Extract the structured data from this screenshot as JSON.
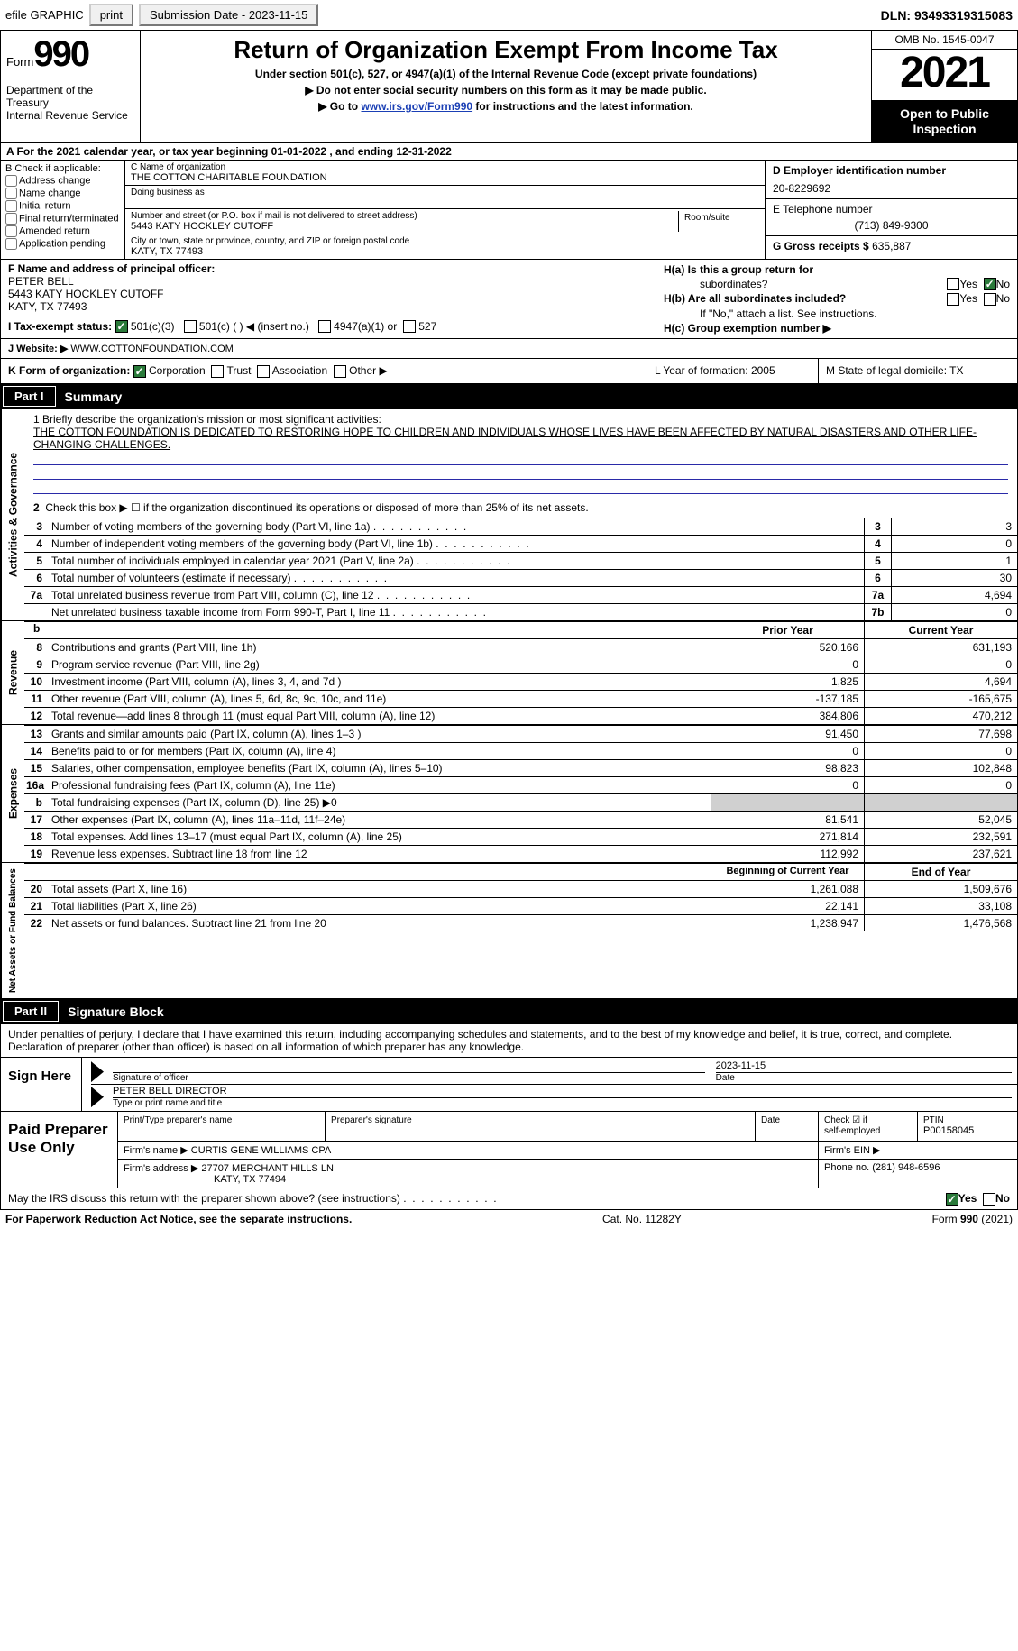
{
  "top": {
    "efile": "efile GRAPHIC",
    "print": "print",
    "sub_label": "Submission Date - 2023-11-15",
    "dln": "DLN: 93493319315083"
  },
  "header": {
    "form_word": "Form",
    "form_num": "990",
    "dept": "Department of the Treasury",
    "irs": "Internal Revenue Service",
    "title": "Return of Organization Exempt From Income Tax",
    "sub1": "Under section 501(c), 527, or 4947(a)(1) of the Internal Revenue Code (except private foundations)",
    "sub2": "▶ Do not enter social security numbers on this form as it may be made public.",
    "sub3_pre": "▶ Go to ",
    "sub3_link": "www.irs.gov/Form990",
    "sub3_post": " for instructions and the latest information.",
    "omb": "OMB No. 1545-0047",
    "year": "2021",
    "open": "Open to Public Inspection"
  },
  "rowA": "A For the 2021 calendar year, or tax year beginning 01-01-2022    , and ending 12-31-2022",
  "colB": {
    "hdr": "B Check if applicable:",
    "c1": "Address change",
    "c2": "Name change",
    "c3": "Initial return",
    "c4": "Final return/terminated",
    "c5": "Amended return",
    "c6": "Application pending"
  },
  "colC": {
    "name_lbl": "C Name of organization",
    "name": "THE COTTON CHARITABLE FOUNDATION",
    "dba_lbl": "Doing business as",
    "addr_lbl": "Number and street (or P.O. box if mail is not delivered to street address)",
    "room_lbl": "Room/suite",
    "addr": "5443 KATY HOCKLEY CUTOFF",
    "city_lbl": "City or town, state or province, country, and ZIP or foreign postal code",
    "city": "KATY, TX  77493"
  },
  "colD": {
    "ein_lbl": "D Employer identification number",
    "ein": "20-8229692",
    "tel_lbl": "E Telephone number",
    "tel": "(713) 849-9300",
    "gross_lbl": "G Gross receipts $",
    "gross": "635,887"
  },
  "f": {
    "lbl": "F  Name and address of principal officer:",
    "name": "PETER BELL",
    "addr1": "5443 KATY HOCKLEY CUTOFF",
    "addr2": "KATY, TX  77493"
  },
  "h": {
    "a_lbl": "H(a)  Is this a group return for",
    "a_lbl2": "subordinates?",
    "b_lbl": "H(b)  Are all subordinates included?",
    "b_note": "If \"No,\" attach a list. See instructions.",
    "c_lbl": "H(c)  Group exemption number ▶"
  },
  "i": {
    "lbl": "I   Tax-exempt status:",
    "o1": "501(c)(3)",
    "o2": "501(c) (  ) ◀ (insert no.)",
    "o3": "4947(a)(1) or",
    "o4": "527"
  },
  "j": {
    "lbl": "J   Website: ▶",
    "val": "WWW.COTTONFOUNDATION.COM"
  },
  "k_lbl": "K Form of organization:",
  "k_o": [
    "Corporation",
    "Trust",
    "Association",
    "Other ▶"
  ],
  "l": "L Year of formation: 2005",
  "m": "M State of legal domicile: TX",
  "part1": {
    "tag": "Part I",
    "ttl": "Summary"
  },
  "mission": {
    "lbl": "1   Briefly describe the organization's mission or most significant activities:",
    "txt": "THE COTTON FOUNDATION IS DEDICATED TO RESTORING HOPE TO CHILDREN AND INDIVIDUALS WHOSE LIVES HAVE BEEN AFFECTED BY NATURAL DISASTERS AND OTHER LIFE-CHANGING CHALLENGES."
  },
  "line2": "Check this box ▶ ☐  if the organization discontinued its operations or disposed of more than 25% of its net assets.",
  "gov_lines": [
    {
      "n": "3",
      "d": "Number of voting members of the governing body (Part VI, line 1a)",
      "box": "3",
      "v": "3"
    },
    {
      "n": "4",
      "d": "Number of independent voting members of the governing body (Part VI, line 1b)",
      "box": "4",
      "v": "0"
    },
    {
      "n": "5",
      "d": "Total number of individuals employed in calendar year 2021 (Part V, line 2a)",
      "box": "5",
      "v": "1"
    },
    {
      "n": "6",
      "d": "Total number of volunteers (estimate if necessary)",
      "box": "6",
      "v": "30"
    },
    {
      "n": "7a",
      "d": "Total unrelated business revenue from Part VIII, column (C), line 12",
      "box": "7a",
      "v": "4,694"
    },
    {
      "n": " ",
      "d": "Net unrelated business taxable income from Form 990-T, Part I, line 11",
      "box": "7b",
      "v": "0"
    }
  ],
  "hdr_prior": "Prior Year",
  "hdr_curr": "Current Year",
  "rev_lines": [
    {
      "n": "8",
      "d": "Contributions and grants (Part VIII, line 1h)",
      "p": "520,166",
      "c": "631,193"
    },
    {
      "n": "9",
      "d": "Program service revenue (Part VIII, line 2g)",
      "p": "0",
      "c": "0"
    },
    {
      "n": "10",
      "d": "Investment income (Part VIII, column (A), lines 3, 4, and 7d )",
      "p": "1,825",
      "c": "4,694"
    },
    {
      "n": "11",
      "d": "Other revenue (Part VIII, column (A), lines 5, 6d, 8c, 9c, 10c, and 11e)",
      "p": "-137,185",
      "c": "-165,675"
    },
    {
      "n": "12",
      "d": "Total revenue—add lines 8 through 11 (must equal Part VIII, column (A), line 12)",
      "p": "384,806",
      "c": "470,212"
    }
  ],
  "exp_lines": [
    {
      "n": "13",
      "d": "Grants and similar amounts paid (Part IX, column (A), lines 1–3 )",
      "p": "91,450",
      "c": "77,698"
    },
    {
      "n": "14",
      "d": "Benefits paid to or for members (Part IX, column (A), line 4)",
      "p": "0",
      "c": "0"
    },
    {
      "n": "15",
      "d": "Salaries, other compensation, employee benefits (Part IX, column (A), lines 5–10)",
      "p": "98,823",
      "c": "102,848"
    },
    {
      "n": "16a",
      "d": "Professional fundraising fees (Part IX, column (A), line 11e)",
      "p": "0",
      "c": "0"
    },
    {
      "n": "b",
      "d": "Total fundraising expenses (Part IX, column (D), line 25) ▶0",
      "p": "",
      "c": "",
      "shaded": true
    },
    {
      "n": "17",
      "d": "Other expenses (Part IX, column (A), lines 11a–11d, 11f–24e)",
      "p": "81,541",
      "c": "52,045"
    },
    {
      "n": "18",
      "d": "Total expenses. Add lines 13–17 (must equal Part IX, column (A), line 25)",
      "p": "271,814",
      "c": "232,591"
    },
    {
      "n": "19",
      "d": "Revenue less expenses. Subtract line 18 from line 12",
      "p": "112,992",
      "c": "237,621"
    }
  ],
  "hdr_beg": "Beginning of Current Year",
  "hdr_end": "End of Year",
  "na_lines": [
    {
      "n": "20",
      "d": "Total assets (Part X, line 16)",
      "p": "1,261,088",
      "c": "1,509,676"
    },
    {
      "n": "21",
      "d": "Total liabilities (Part X, line 26)",
      "p": "22,141",
      "c": "33,108"
    },
    {
      "n": "22",
      "d": "Net assets or fund balances. Subtract line 21 from line 20",
      "p": "1,238,947",
      "c": "1,476,568"
    }
  ],
  "part2": {
    "tag": "Part II",
    "ttl": "Signature Block"
  },
  "sig_intro": "Under penalties of perjury, I declare that I have examined this return, including accompanying schedules and statements, and to the best of my knowledge and belief, it is true, correct, and complete. Declaration of preparer (other than officer) is based on all information of which preparer has any knowledge.",
  "sign": {
    "here": "Sign Here",
    "sig_lbl": "Signature of officer",
    "date_lbl": "Date",
    "date": "2023-11-15",
    "name": "PETER BELL  DIRECTOR",
    "name_lbl": "Type or print name and title"
  },
  "paid": {
    "hdr": "Paid Preparer Use Only",
    "r1c1": "Print/Type preparer's name",
    "r1c2": "Preparer's signature",
    "r1c3": "Date",
    "r1c4a": "Check ☑ if",
    "r1c4b": "self-employed",
    "r1c5a": "PTIN",
    "r1c5b": "P00158045",
    "r2a": "Firm's name    ▶",
    "r2b": "CURTIS GENE WILLIAMS CPA",
    "r2c": "Firm's EIN ▶",
    "r3a": "Firm's address ▶",
    "r3b": "27707 MERCHANT HILLS LN",
    "r3c": "KATY, TX  77494",
    "r3d": "Phone no. (281) 948-6596"
  },
  "discuss": "May the IRS discuss this return with the preparer shown above? (see instructions)",
  "footer": {
    "l": "For Paperwork Reduction Act Notice, see the separate instructions.",
    "c": "Cat. No. 11282Y",
    "r": "Form 990 (2021)"
  },
  "labels_vert": {
    "gov": "Activities & Governance",
    "rev": "Revenue",
    "exp": "Expenses",
    "na": "Net Assets or Fund Balances"
  },
  "yn": {
    "yes": "Yes",
    "no": "No"
  }
}
